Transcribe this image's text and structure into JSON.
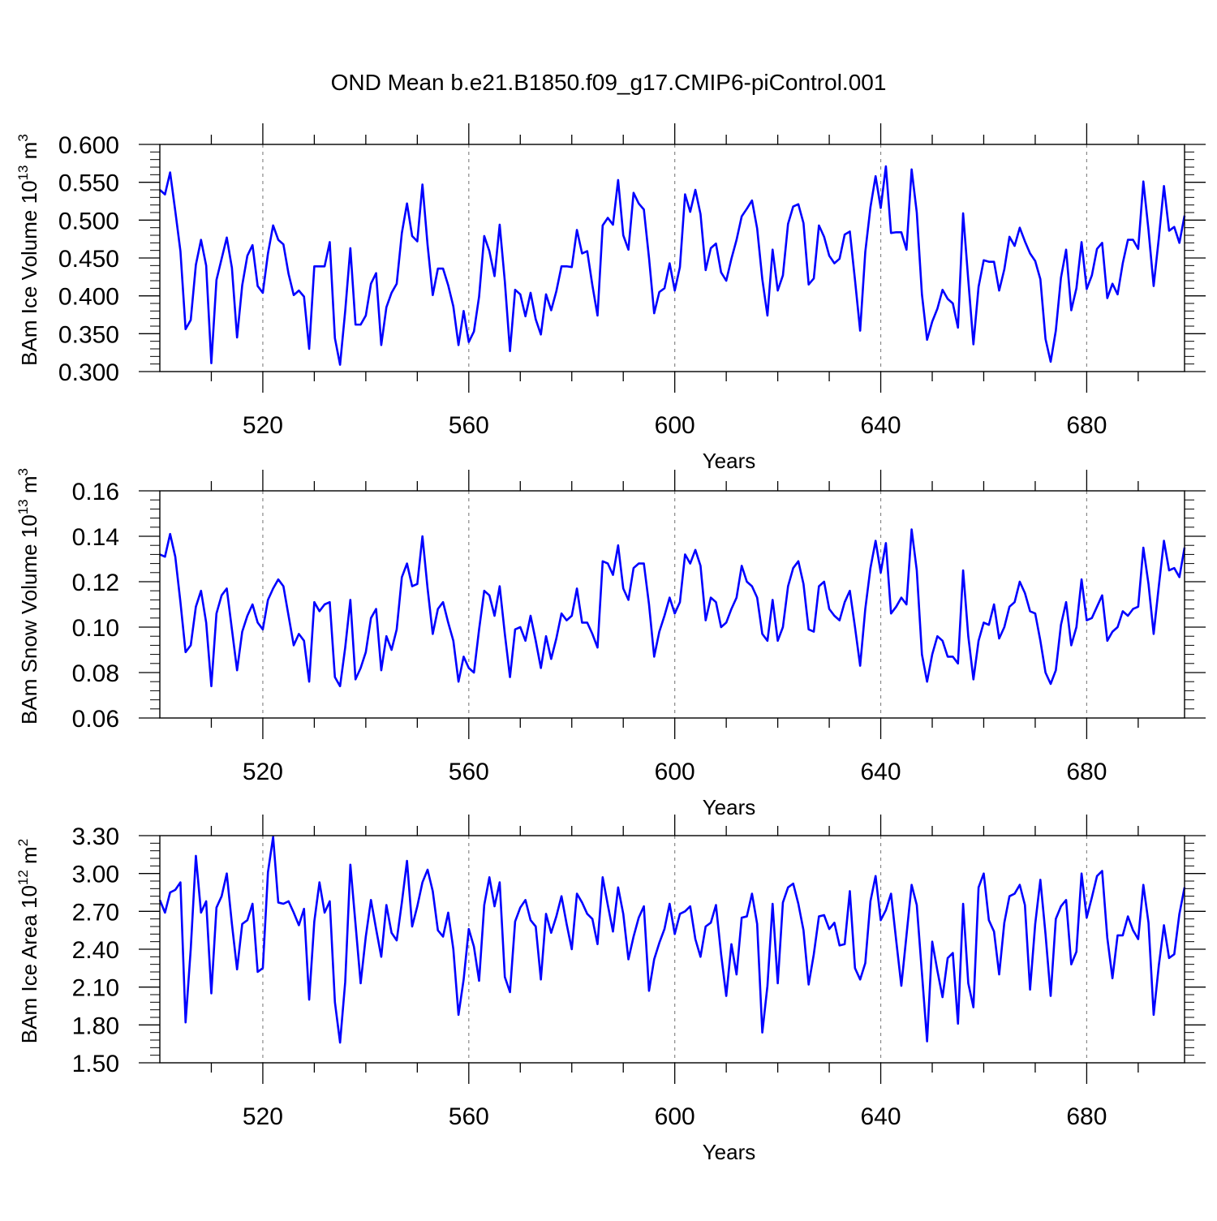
{
  "title": "OND Mean b.e21.B1850.f09_g17.CMIP6-piControl.001",
  "colors": {
    "line": "#0000ff",
    "axis": "#000000",
    "grid": "#888888"
  },
  "chart_data": [
    {
      "type": "line",
      "ylabel_main": "BAm Ice Volume 10",
      "ylabel_exp": "13",
      "ylabel_unit": " m",
      "ylabel_unit_exp": "3",
      "xlabel": "Years",
      "xlim": [
        500,
        699
      ],
      "ylim": [
        0.3,
        0.6
      ],
      "yticks": [
        "0.300",
        "0.350",
        "0.400",
        "0.450",
        "0.500",
        "0.550",
        "0.600"
      ],
      "ytick_values": [
        0.3,
        0.35,
        0.4,
        0.45,
        0.5,
        0.55,
        0.6
      ],
      "xticks": [
        "520",
        "560",
        "600",
        "640",
        "680"
      ],
      "xtick_values": [
        520,
        560,
        600,
        640,
        680
      ],
      "grid_x": true,
      "x_start": 500,
      "values": [
        0.54,
        0.534,
        0.563,
        0.512,
        0.459,
        0.356,
        0.368,
        0.441,
        0.474,
        0.44,
        0.311,
        0.421,
        0.449,
        0.477,
        0.437,
        0.345,
        0.414,
        0.453,
        0.467,
        0.413,
        0.404,
        0.456,
        0.493,
        0.474,
        0.468,
        0.429,
        0.401,
        0.407,
        0.399,
        0.33,
        0.439,
        0.439,
        0.439,
        0.471,
        0.344,
        0.309,
        0.38,
        0.463,
        0.362,
        0.362,
        0.374,
        0.416,
        0.43,
        0.335,
        0.385,
        0.404,
        0.416,
        0.483,
        0.522,
        0.479,
        0.472,
        0.547,
        0.467,
        0.401,
        0.436,
        0.436,
        0.414,
        0.386,
        0.335,
        0.38,
        0.339,
        0.353,
        0.399,
        0.479,
        0.459,
        0.426,
        0.494,
        0.419,
        0.327,
        0.408,
        0.402,
        0.373,
        0.404,
        0.369,
        0.349,
        0.402,
        0.381,
        0.406,
        0.439,
        0.439,
        0.438,
        0.487,
        0.456,
        0.459,
        0.414,
        0.374,
        0.493,
        0.503,
        0.494,
        0.553,
        0.48,
        0.461,
        0.536,
        0.522,
        0.514,
        0.45,
        0.377,
        0.405,
        0.41,
        0.443,
        0.407,
        0.438,
        0.534,
        0.511,
        0.54,
        0.508,
        0.434,
        0.463,
        0.469,
        0.431,
        0.42,
        0.449,
        0.474,
        0.505,
        0.515,
        0.526,
        0.489,
        0.422,
        0.374,
        0.461,
        0.407,
        0.427,
        0.495,
        0.518,
        0.521,
        0.496,
        0.415,
        0.423,
        0.493,
        0.478,
        0.453,
        0.443,
        0.449,
        0.481,
        0.485,
        0.421,
        0.354,
        0.458,
        0.517,
        0.558,
        0.516,
        0.571,
        0.483,
        0.484,
        0.484,
        0.461,
        0.567,
        0.51,
        0.402,
        0.342,
        0.366,
        0.383,
        0.408,
        0.396,
        0.39,
        0.358,
        0.509,
        0.421,
        0.336,
        0.412,
        0.447,
        0.445,
        0.445,
        0.407,
        0.435,
        0.478,
        0.466,
        0.49,
        0.472,
        0.456,
        0.446,
        0.422,
        0.343,
        0.313,
        0.354,
        0.424,
        0.461,
        0.381,
        0.41,
        0.471,
        0.409,
        0.427,
        0.462,
        0.47,
        0.397,
        0.416,
        0.402,
        0.443,
        0.474,
        0.474,
        0.462,
        0.551,
        0.487,
        0.413,
        0.476,
        0.545,
        0.486,
        0.491,
        0.47,
        0.506
      ]
    },
    {
      "type": "line",
      "ylabel_main": "BAm Snow Volume 10",
      "ylabel_exp": "13",
      "ylabel_unit": " m",
      "ylabel_unit_exp": "3",
      "xlabel": "Years",
      "xlim": [
        500,
        699
      ],
      "ylim": [
        0.06,
        0.16
      ],
      "yticks": [
        "0.06",
        "0.08",
        "0.10",
        "0.12",
        "0.14",
        "0.16"
      ],
      "ytick_values": [
        0.06,
        0.08,
        0.1,
        0.12,
        0.14,
        0.16
      ],
      "xticks": [
        "520",
        "560",
        "600",
        "640",
        "680"
      ],
      "xtick_values": [
        520,
        560,
        600,
        640,
        680
      ],
      "grid_x": true,
      "x_start": 500,
      "values": [
        0.132,
        0.131,
        0.141,
        0.131,
        0.111,
        0.089,
        0.092,
        0.109,
        0.116,
        0.102,
        0.074,
        0.106,
        0.114,
        0.117,
        0.099,
        0.081,
        0.098,
        0.105,
        0.11,
        0.102,
        0.099,
        0.112,
        0.117,
        0.121,
        0.118,
        0.105,
        0.092,
        0.097,
        0.094,
        0.076,
        0.111,
        0.107,
        0.11,
        0.111,
        0.078,
        0.074,
        0.091,
        0.112,
        0.077,
        0.082,
        0.089,
        0.104,
        0.108,
        0.081,
        0.096,
        0.09,
        0.099,
        0.122,
        0.128,
        0.118,
        0.119,
        0.14,
        0.117,
        0.097,
        0.108,
        0.111,
        0.102,
        0.094,
        0.076,
        0.087,
        0.082,
        0.08,
        0.099,
        0.116,
        0.114,
        0.105,
        0.118,
        0.097,
        0.078,
        0.099,
        0.1,
        0.094,
        0.105,
        0.094,
        0.082,
        0.096,
        0.086,
        0.095,
        0.106,
        0.103,
        0.105,
        0.117,
        0.102,
        0.102,
        0.097,
        0.091,
        0.129,
        0.128,
        0.123,
        0.136,
        0.117,
        0.112,
        0.126,
        0.128,
        0.128,
        0.11,
        0.087,
        0.098,
        0.105,
        0.113,
        0.106,
        0.111,
        0.132,
        0.128,
        0.134,
        0.127,
        0.103,
        0.113,
        0.111,
        0.1,
        0.102,
        0.108,
        0.113,
        0.127,
        0.12,
        0.118,
        0.113,
        0.097,
        0.094,
        0.112,
        0.094,
        0.1,
        0.118,
        0.126,
        0.129,
        0.119,
        0.099,
        0.098,
        0.118,
        0.12,
        0.108,
        0.105,
        0.103,
        0.111,
        0.116,
        0.1,
        0.083,
        0.108,
        0.126,
        0.138,
        0.124,
        0.137,
        0.106,
        0.109,
        0.113,
        0.11,
        0.143,
        0.125,
        0.088,
        0.076,
        0.088,
        0.096,
        0.094,
        0.087,
        0.087,
        0.084,
        0.125,
        0.096,
        0.077,
        0.094,
        0.102,
        0.101,
        0.11,
        0.095,
        0.1,
        0.109,
        0.111,
        0.12,
        0.115,
        0.107,
        0.106,
        0.094,
        0.08,
        0.075,
        0.081,
        0.101,
        0.111,
        0.092,
        0.1,
        0.121,
        0.103,
        0.104,
        0.109,
        0.114,
        0.094,
        0.098,
        0.1,
        0.107,
        0.105,
        0.108,
        0.109,
        0.135,
        0.119,
        0.097,
        0.118,
        0.138,
        0.125,
        0.126,
        0.122,
        0.135
      ]
    },
    {
      "type": "line",
      "ylabel_main": "BAm Ice Area 10",
      "ylabel_exp": "12",
      "ylabel_unit": " m",
      "ylabel_unit_exp": "2",
      "xlabel": "Years",
      "xlim": [
        500,
        699
      ],
      "ylim": [
        1.5,
        3.3
      ],
      "yticks": [
        "1.50",
        "1.80",
        "2.10",
        "2.40",
        "2.70",
        "3.00",
        "3.30"
      ],
      "ytick_values": [
        1.5,
        1.8,
        2.1,
        2.4,
        2.7,
        3.0,
        3.3
      ],
      "xticks": [
        "520",
        "560",
        "600",
        "640",
        "680"
      ],
      "xtick_values": [
        520,
        560,
        600,
        640,
        680
      ],
      "grid_x": true,
      "x_start": 500,
      "values": [
        2.79,
        2.69,
        2.85,
        2.87,
        2.93,
        1.82,
        2.4,
        3.14,
        2.69,
        2.78,
        2.05,
        2.73,
        2.82,
        3.0,
        2.6,
        2.24,
        2.6,
        2.63,
        2.76,
        2.22,
        2.25,
        3.01,
        3.29,
        2.77,
        2.76,
        2.78,
        2.69,
        2.59,
        2.72,
        2.0,
        2.62,
        2.93,
        2.69,
        2.78,
        1.98,
        1.66,
        2.14,
        3.07,
        2.6,
        2.13,
        2.5,
        2.79,
        2.56,
        2.34,
        2.75,
        2.53,
        2.47,
        2.77,
        3.1,
        2.58,
        2.74,
        2.93,
        3.03,
        2.86,
        2.55,
        2.5,
        2.69,
        2.4,
        1.88,
        2.16,
        2.56,
        2.42,
        2.15,
        2.75,
        2.97,
        2.74,
        2.93,
        2.18,
        2.06,
        2.62,
        2.73,
        2.79,
        2.63,
        2.58,
        2.16,
        2.68,
        2.53,
        2.66,
        2.82,
        2.6,
        2.4,
        2.84,
        2.77,
        2.68,
        2.64,
        2.44,
        2.97,
        2.75,
        2.54,
        2.89,
        2.68,
        2.32,
        2.5,
        2.65,
        2.74,
        2.07,
        2.32,
        2.45,
        2.56,
        2.76,
        2.52,
        2.68,
        2.7,
        2.74,
        2.48,
        2.34,
        2.58,
        2.61,
        2.75,
        2.36,
        2.03,
        2.44,
        2.2,
        2.65,
        2.66,
        2.84,
        2.6,
        1.74,
        2.11,
        2.76,
        2.13,
        2.77,
        2.89,
        2.92,
        2.76,
        2.55,
        2.12,
        2.36,
        2.66,
        2.67,
        2.56,
        2.61,
        2.43,
        2.44,
        2.86,
        2.25,
        2.16,
        2.29,
        2.78,
        2.98,
        2.63,
        2.71,
        2.84,
        2.47,
        2.11,
        2.51,
        2.91,
        2.75,
        2.21,
        1.67,
        2.46,
        2.23,
        2.02,
        2.33,
        2.37,
        1.81,
        2.76,
        2.13,
        1.94,
        2.89,
        3.0,
        2.63,
        2.54,
        2.2,
        2.61,
        2.82,
        2.84,
        2.91,
        2.75,
        2.08,
        2.6,
        2.95,
        2.52,
        2.03,
        2.64,
        2.74,
        2.79,
        2.28,
        2.38,
        3.0,
        2.65,
        2.81,
        2.98,
        3.02,
        2.49,
        2.17,
        2.51,
        2.51,
        2.66,
        2.55,
        2.48,
        2.91,
        2.61,
        1.88,
        2.27,
        2.59,
        2.33,
        2.36,
        2.68,
        2.89
      ]
    }
  ]
}
